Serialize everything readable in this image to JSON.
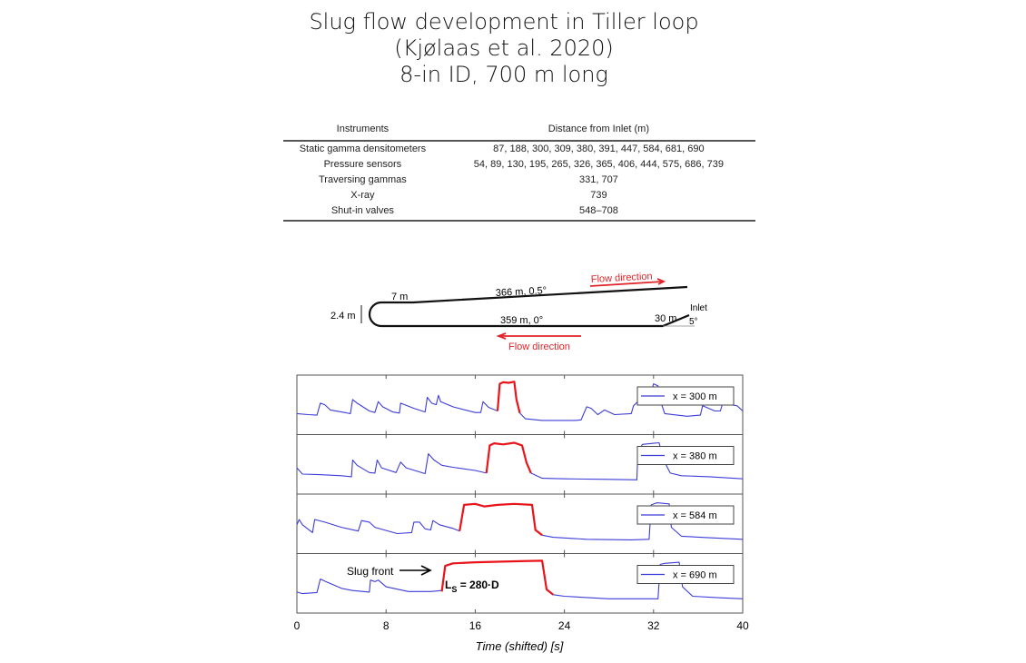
{
  "title": {
    "line1": "Slug flow development in Tiller loop",
    "line2": "(Kjølaas et al. 2020)",
    "line3": "8-in ID, 700 m long"
  },
  "table": {
    "headers": [
      "Instruments",
      "Distance from Inlet (m)"
    ],
    "rows": [
      [
        "Static gamma densitometers",
        "87, 188, 300, 309, 380, 391, 447, 584, 681, 690"
      ],
      [
        "Pressure sensors",
        "54, 89, 130, 195, 265, 326, 365, 406, 444, 575, 686, 739"
      ],
      [
        "Traversing gammas",
        "331, 707"
      ],
      [
        "X-ray",
        "739"
      ],
      [
        "Shut-in valves",
        "548–708"
      ]
    ]
  },
  "loop_diagram": {
    "upper_leg": "366 m, 0.5°",
    "bend_straight": "7 m",
    "height": "2.4 m",
    "lower_leg": "359 m, 0°",
    "inlet_leg": "30 m",
    "inlet_angle": "5°",
    "inlet_label": "Inlet",
    "flow_upper": "Flow direction",
    "flow_lower": "Flow direction",
    "flow_color": "#e0262a"
  },
  "chart_data": {
    "type": "line",
    "xlabel": "Time (shifted) [s]",
    "xlim": [
      0,
      40
    ],
    "xticks": [
      "0",
      "8",
      "16",
      "24",
      "32",
      "40"
    ],
    "grid": false,
    "legend_placement": "right",
    "signal_color": "#3c3cd8",
    "slug_color": "#e8141a",
    "annotation_slug_front": "Slug front",
    "annotation_length_main": "L",
    "annotation_length_sub": "S",
    "annotation_length_rest": " = 280·D",
    "panels": [
      {
        "name": "x = 300 m",
        "before": [
          [
            0,
            0.35
          ],
          [
            1,
            0.33
          ],
          [
            1.8,
            0.32
          ],
          [
            2.1,
            0.55
          ],
          [
            2.5,
            0.52
          ],
          [
            3,
            0.42
          ],
          [
            4,
            0.38
          ],
          [
            4.8,
            0.35
          ],
          [
            5,
            0.62
          ],
          [
            5.4,
            0.55
          ],
          [
            6.5,
            0.4
          ],
          [
            7,
            0.37
          ],
          [
            7.3,
            0.58
          ],
          [
            7.7,
            0.48
          ],
          [
            8.6,
            0.38
          ],
          [
            9.2,
            0.36
          ],
          [
            9.3,
            0.55
          ],
          [
            10.5,
            0.45
          ],
          [
            11.5,
            0.38
          ],
          [
            11.7,
            0.66
          ],
          [
            12.1,
            0.55
          ],
          [
            12.5,
            0.52
          ],
          [
            12.7,
            0.7
          ],
          [
            12.9,
            0.58
          ],
          [
            14,
            0.48
          ],
          [
            16,
            0.37
          ],
          [
            16.5,
            0.37
          ],
          [
            16.7,
            0.58
          ],
          [
            17.2,
            0.47
          ],
          [
            18,
            0.4
          ]
        ],
        "slug": [
          [
            18,
            0.4
          ],
          [
            18.2,
            0.92
          ],
          [
            18.5,
            0.95
          ],
          [
            19,
            0.94
          ],
          [
            19.5,
            0.96
          ],
          [
            19.7,
            0.62
          ],
          [
            20,
            0.36
          ]
        ],
        "after": [
          [
            20,
            0.36
          ],
          [
            20.5,
            0.25
          ],
          [
            22,
            0.22
          ],
          [
            25,
            0.22
          ],
          [
            25.5,
            0.23
          ],
          [
            26,
            0.48
          ],
          [
            26.4,
            0.45
          ],
          [
            27,
            0.33
          ],
          [
            27.6,
            0.42
          ],
          [
            28.5,
            0.33
          ],
          [
            30,
            0.35
          ],
          [
            30.2,
            0.5
          ],
          [
            30.7,
            0.6
          ],
          [
            31.5,
            0.52
          ],
          [
            32,
            0.92
          ],
          [
            32.4,
            0.88
          ],
          [
            32.6,
            0.6
          ],
          [
            33,
            0.35
          ],
          [
            35,
            0.3
          ],
          [
            36.2,
            0.32
          ],
          [
            36.4,
            0.5
          ],
          [
            37.5,
            0.4
          ],
          [
            38,
            0.4
          ],
          [
            38.2,
            0.55
          ],
          [
            39.5,
            0.5
          ],
          [
            40,
            0.4
          ]
        ]
      },
      {
        "name": "x = 380 m",
        "before": [
          [
            0,
            0.45
          ],
          [
            0.5,
            0.33
          ],
          [
            2,
            0.32
          ],
          [
            4,
            0.3
          ],
          [
            4.9,
            0.28
          ],
          [
            5,
            0.6
          ],
          [
            5.4,
            0.5
          ],
          [
            6.5,
            0.36
          ],
          [
            7,
            0.35
          ],
          [
            7.2,
            0.6
          ],
          [
            7.6,
            0.45
          ],
          [
            8.9,
            0.36
          ],
          [
            9.3,
            0.56
          ],
          [
            9.8,
            0.45
          ],
          [
            11.5,
            0.34
          ],
          [
            11.8,
            0.72
          ],
          [
            12.3,
            0.6
          ],
          [
            13,
            0.5
          ],
          [
            14,
            0.46
          ],
          [
            16,
            0.4
          ],
          [
            17,
            0.35
          ]
        ],
        "slug": [
          [
            17,
            0.35
          ],
          [
            17.3,
            0.88
          ],
          [
            17.7,
            0.92
          ],
          [
            18.5,
            0.9
          ],
          [
            19.5,
            0.93
          ],
          [
            20.2,
            0.88
          ],
          [
            20.6,
            0.55
          ],
          [
            21,
            0.35
          ]
        ],
        "after": [
          [
            21,
            0.35
          ],
          [
            22,
            0.25
          ],
          [
            24,
            0.24
          ],
          [
            28,
            0.23
          ],
          [
            30.5,
            0.22
          ],
          [
            30.6,
            0.75
          ],
          [
            31,
            0.9
          ],
          [
            32,
            0.92
          ],
          [
            32.5,
            0.93
          ],
          [
            32.9,
            0.6
          ],
          [
            33.5,
            0.35
          ],
          [
            34.5,
            0.3
          ],
          [
            37,
            0.28
          ],
          [
            40,
            0.24
          ]
        ]
      },
      {
        "name": "x = 584 m",
        "before": [
          [
            0,
            0.5
          ],
          [
            0.2,
            0.6
          ],
          [
            0.5,
            0.5
          ],
          [
            1.4,
            0.35
          ],
          [
            1.6,
            0.6
          ],
          [
            2.5,
            0.55
          ],
          [
            4,
            0.45
          ],
          [
            5.5,
            0.38
          ],
          [
            5.8,
            0.58
          ],
          [
            6.5,
            0.55
          ],
          [
            7,
            0.45
          ],
          [
            9,
            0.33
          ],
          [
            10.3,
            0.35
          ],
          [
            10.5,
            0.55
          ],
          [
            11,
            0.55
          ],
          [
            11.5,
            0.42
          ],
          [
            12,
            0.4
          ],
          [
            12.2,
            0.58
          ],
          [
            12.8,
            0.5
          ],
          [
            14,
            0.43
          ],
          [
            14.6,
            0.38
          ]
        ],
        "slug": [
          [
            14.6,
            0.38
          ],
          [
            15,
            0.88
          ],
          [
            16,
            0.9
          ],
          [
            16.8,
            0.85
          ],
          [
            18,
            0.88
          ],
          [
            19.5,
            0.9
          ],
          [
            21.1,
            0.88
          ],
          [
            21.4,
            0.4
          ],
          [
            22,
            0.3
          ]
        ],
        "after": [
          [
            22,
            0.3
          ],
          [
            23,
            0.26
          ],
          [
            26,
            0.22
          ],
          [
            30,
            0.21
          ],
          [
            31.6,
            0.22
          ],
          [
            31.8,
            0.88
          ],
          [
            32.3,
            0.92
          ],
          [
            33.4,
            0.9
          ],
          [
            33.6,
            0.45
          ],
          [
            34.5,
            0.28
          ],
          [
            37,
            0.25
          ],
          [
            40,
            0.22
          ]
        ]
      },
      {
        "name": "x = 690 m",
        "before": [
          [
            0,
            0.35
          ],
          [
            0.5,
            0.32
          ],
          [
            1.8,
            0.34
          ],
          [
            2.1,
            0.6
          ],
          [
            2.6,
            0.55
          ],
          [
            4,
            0.42
          ],
          [
            5,
            0.38
          ],
          [
            6.5,
            0.35
          ],
          [
            6.6,
            0.58
          ],
          [
            7,
            0.55
          ],
          [
            7.3,
            0.58
          ],
          [
            8,
            0.45
          ],
          [
            10,
            0.36
          ],
          [
            12,
            0.36
          ],
          [
            13,
            0.38
          ]
        ],
        "slug": [
          [
            13,
            0.36
          ],
          [
            13.3,
            0.85
          ],
          [
            14,
            0.9
          ],
          [
            16,
            0.92
          ],
          [
            18,
            0.93
          ],
          [
            20,
            0.94
          ],
          [
            22,
            0.95
          ],
          [
            22.4,
            0.4
          ],
          [
            23,
            0.3
          ]
        ],
        "after": [
          [
            23,
            0.3
          ],
          [
            24,
            0.27
          ],
          [
            28,
            0.22
          ],
          [
            32.4,
            0.22
          ],
          [
            32.6,
            0.88
          ],
          [
            33,
            0.9
          ],
          [
            34.3,
            0.92
          ],
          [
            34.6,
            0.45
          ],
          [
            35.5,
            0.27
          ],
          [
            38,
            0.24
          ],
          [
            40,
            0.22
          ]
        ]
      }
    ]
  }
}
